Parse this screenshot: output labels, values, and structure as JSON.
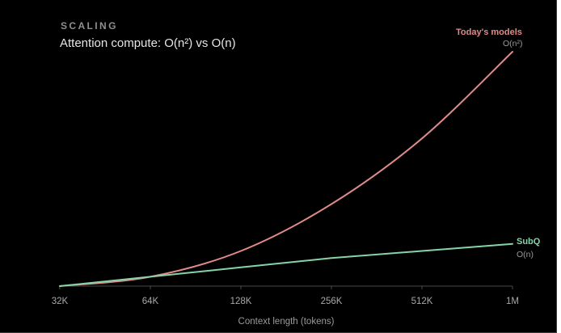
{
  "header": {
    "eyebrow": "SCALING",
    "title": "Attention compute: O(n²) vs O(n)"
  },
  "chart_data": {
    "type": "line",
    "title": "Attention compute: O(n²) vs O(n)",
    "xlabel": "Context length (tokens)",
    "ylabel": "",
    "x_tick_labels": [
      "32K",
      "64K",
      "128K",
      "256K",
      "512K",
      "1M"
    ],
    "x_scale": "log2",
    "grid": false,
    "series": [
      {
        "name": "Today's models",
        "sublabel": "O(n²)",
        "color": "#e08a8a",
        "x": [
          "32K",
          "64K",
          "128K",
          "256K",
          "512K",
          "1M"
        ],
        "y": [
          0,
          0.04,
          0.15,
          0.35,
          0.63,
          1.0
        ]
      },
      {
        "name": "SubQ",
        "sublabel": "O(n)",
        "color": "#86d3a8",
        "x": [
          "32K",
          "64K",
          "128K",
          "256K",
          "512K",
          "1M"
        ],
        "y": [
          0,
          0.04,
          0.08,
          0.12,
          0.15,
          0.18
        ]
      }
    ],
    "ylim": [
      0,
      1
    ]
  }
}
